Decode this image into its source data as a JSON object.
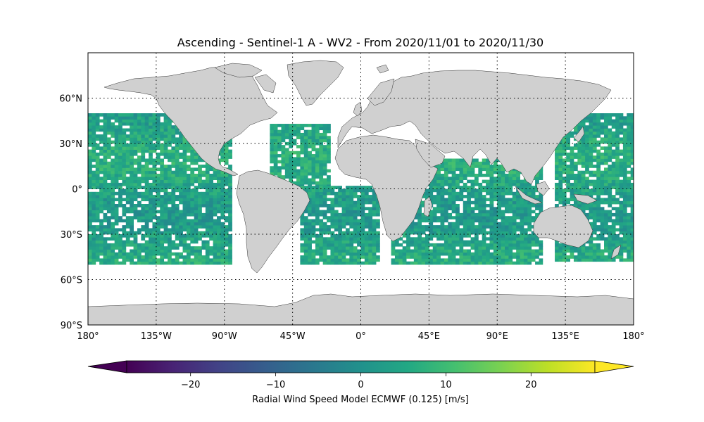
{
  "figure": {
    "title": "Ascending - Sentinel-1 A - WV2 - From 2020/11/01 to 2020/11/30"
  },
  "map": {
    "projection": "plate-carree",
    "lon_range": [
      -180,
      180
    ],
    "lat_range": [
      -90,
      90
    ],
    "grid": "dotted",
    "land_color": "#d0d0d0",
    "ocean_color": "#ffffff",
    "lon_ticks": [
      {
        "value": -180,
        "label": "180°"
      },
      {
        "value": -135,
        "label": "135°W"
      },
      {
        "value": -90,
        "label": "90°W"
      },
      {
        "value": -45,
        "label": "45°W"
      },
      {
        "value": 0,
        "label": "0°"
      },
      {
        "value": 45,
        "label": "45°E"
      },
      {
        "value": 90,
        "label": "90°E"
      },
      {
        "value": 135,
        "label": "135°E"
      },
      {
        "value": 180,
        "label": "180°"
      }
    ],
    "lat_ticks": [
      {
        "value": 60,
        "label": "60°N"
      },
      {
        "value": 30,
        "label": "30°N"
      },
      {
        "value": 0,
        "label": "0°"
      },
      {
        "value": -30,
        "label": "30°S"
      },
      {
        "value": -60,
        "label": "60°S"
      },
      {
        "value": -90,
        "label": "90°S"
      }
    ]
  },
  "colorbar": {
    "label": "Radial Wind Speed Model ECMWF (0.125) [m/s]",
    "colormap": "viridis",
    "range": [
      -27.5,
      27.5
    ],
    "extend": "both",
    "ticks": [
      {
        "value": -20,
        "label": "−20"
      },
      {
        "value": -10,
        "label": "−10"
      },
      {
        "value": 0,
        "label": "0"
      },
      {
        "value": 10,
        "label": "10"
      },
      {
        "value": 20,
        "label": "20"
      }
    ]
  },
  "data_coverage": {
    "lat_range": [
      -50,
      50
    ],
    "dominant_value_range": [
      0,
      10
    ],
    "swaths": [
      {
        "region": "Central Pacific",
        "lon_range": [
          -180,
          -85
        ],
        "lat_range": [
          -50,
          50
        ]
      },
      {
        "region": "North Atlantic",
        "lon_range": [
          -60,
          -20
        ],
        "lat_range": [
          -5,
          43
        ]
      },
      {
        "region": "South Atlantic",
        "lon_range": [
          -40,
          12
        ],
        "lat_range": [
          -50,
          2
        ]
      },
      {
        "region": "Indian Ocean",
        "lon_range": [
          20,
          118
        ],
        "lat_range": [
          -50,
          20
        ]
      },
      {
        "region": "Western Pacific",
        "lon_range": [
          128,
          180
        ],
        "lat_range": [
          -48,
          50
        ]
      }
    ]
  }
}
